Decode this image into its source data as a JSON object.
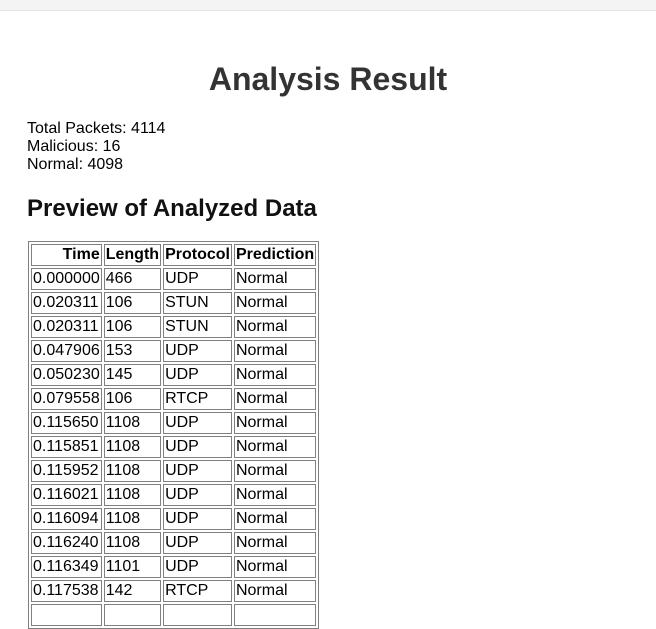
{
  "page": {
    "title": "Analysis Result",
    "stats": {
      "total": "Total Packets: 4114",
      "malicious": "Malicious: 16",
      "normal": "Normal: 4098"
    },
    "preview_heading": "Preview of Analyzed Data"
  },
  "table": {
    "headers": [
      "Time",
      "Length",
      "Protocol",
      "Prediction"
    ],
    "rows": [
      [
        "0.000000",
        "466",
        "UDP",
        "Normal"
      ],
      [
        "0.020311",
        "106",
        "STUN",
        "Normal"
      ],
      [
        "0.020311",
        "106",
        "STUN",
        "Normal"
      ],
      [
        "0.047906",
        "153",
        "UDP",
        "Normal"
      ],
      [
        "0.050230",
        "145",
        "UDP",
        "Normal"
      ],
      [
        "0.079558",
        "106",
        "RTCP",
        "Normal"
      ],
      [
        "0.115650",
        "1108",
        "UDP",
        "Normal"
      ],
      [
        "0.115851",
        "1108",
        "UDP",
        "Normal"
      ],
      [
        "0.115952",
        "1108",
        "UDP",
        "Normal"
      ],
      [
        "0.116021",
        "1108",
        "UDP",
        "Normal"
      ],
      [
        "0.116094",
        "1108",
        "UDP",
        "Normal"
      ],
      [
        "0.116240",
        "1108",
        "UDP",
        "Normal"
      ],
      [
        "0.116349",
        "1101",
        "UDP",
        "Normal"
      ],
      [
        "0.117538",
        "142",
        "RTCP",
        "Normal"
      ]
    ]
  }
}
